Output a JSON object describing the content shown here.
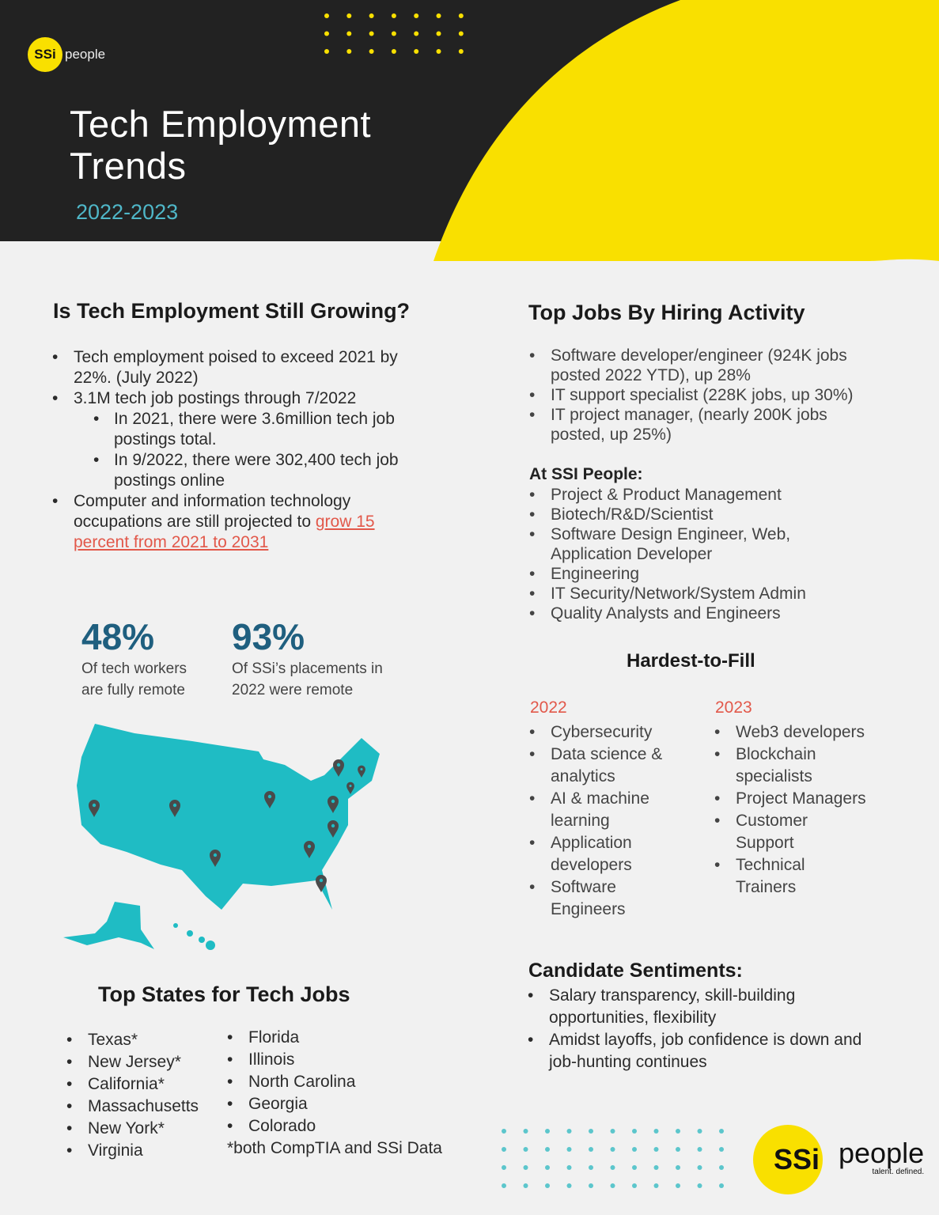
{
  "brand": {
    "logo_mark": "SSi",
    "logo_word": "people",
    "tagline": "talent. defined."
  },
  "header": {
    "title_line1": "Tech Employment",
    "title_line2": "Trends",
    "years": "2022-2023"
  },
  "growing": {
    "heading": "Is Tech Employment Still Growing?",
    "b1": "Tech employment poised to exceed 2021 by 22%. (July 2022)",
    "b2": "3.1M tech job postings through 7/2022",
    "b2a": "In 2021, there were 3.6million tech job postings total.",
    "b2b": "In 9/2022, there were 302,400 tech job postings online",
    "b3_pre": "Computer and information technology occupations are still projected to ",
    "b3_link": "grow 15 percent from 2021 to 2031"
  },
  "stats": [
    {
      "value": "48%",
      "label_line1": "Of tech workers",
      "label_line2": "are fully remote"
    },
    {
      "value": "93%",
      "label_line1": "Of SSi’s placements in",
      "label_line2": "2022 were remote"
    }
  ],
  "states": {
    "heading": "Top States for Tech Jobs",
    "col1": [
      "Texas*",
      "New Jersey*",
      "California*",
      "Massachusetts",
      "New York*",
      "Virginia"
    ],
    "col2": [
      "Florida",
      "Illinois",
      "North Carolina",
      "Georgia",
      "Colorado"
    ],
    "note": "*both CompTIA and SSi Data"
  },
  "top_jobs": {
    "heading": "Top Jobs By Hiring Activity",
    "items": [
      "Software developer/engineer (924K jobs posted 2022 YTD), up 28%",
      "IT support specialist (228K jobs, up 30%)",
      "IT project manager, (nearly 200K jobs posted, up 25%)"
    ],
    "ssi_heading": "At SSI People:",
    "ssi_items": [
      "Project & Product Management",
      "Biotech/R&D/Scientist",
      "Software Design Engineer, Web, Application Developer",
      "Engineering",
      "IT Security/Network/System Admin",
      "Quality Analysts and Engineers"
    ]
  },
  "hardest": {
    "heading": "Hardest-to-Fill",
    "y2022": "2022",
    "items2022": [
      "Cybersecurity",
      "Data science & analytics",
      "AI & machine learning",
      "Application developers",
      "Software Engineers"
    ],
    "y2023": "2023",
    "items2023": [
      "Web3 developers",
      "Blockchain specialists",
      "Project Managers",
      "Customer Support",
      "Technical Trainers"
    ]
  },
  "sentiments": {
    "heading": "Candidate Sentiments:",
    "items": [
      "Salary transparency, skill-building opportunities, flexibility",
      "Amidst layoffs, job confidence is down and job-hunting continues"
    ]
  },
  "colors": {
    "dark": "#222222",
    "yellow": "#f9e000",
    "teal": "#1fbcc4",
    "accent_red": "#e2584a",
    "stat_blue": "#1f5f7f"
  },
  "map": {
    "icon": "map-pin-icon",
    "pins": 11
  }
}
